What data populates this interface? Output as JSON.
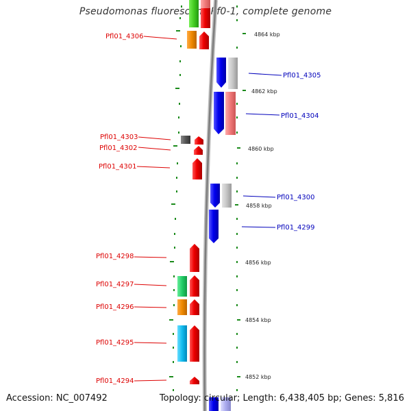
{
  "title": "Pseudomonas fluorescens Pf0-1, complete genome",
  "footer": {
    "accession": "Accession: NC_007492",
    "summary": "Topology: circular; Length: 6,438,405 bp; Genes: 5,816"
  },
  "colors": {
    "left_label": "#dd0000",
    "right_label": "#0000bb",
    "backbone": "#8a8a8a",
    "tick": "#1a8a1a"
  },
  "kbp_labels": [
    "4864 kbp",
    "4862 kbp",
    "4860 kbp",
    "4858 kbp",
    "4856 kbp",
    "4854 kbp",
    "4852 kbp"
  ],
  "left_labels": [
    "Pfl01_4306",
    "Pfl01_4303",
    "Pfl01_4302",
    "Pfl01_4301",
    "Pfl01_4298",
    "Pfl01_4297",
    "Pfl01_4296",
    "Pfl01_4295",
    "Pfl01_4294"
  ],
  "right_labels": [
    "Pfl01_4305",
    "Pfl01_4304",
    "Pfl01_4300",
    "Pfl01_4299"
  ]
}
